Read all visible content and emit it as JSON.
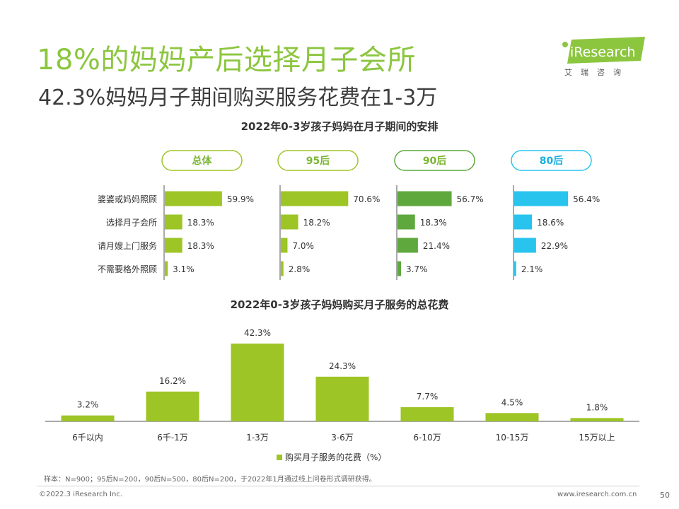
{
  "slide": {
    "title": "18%的妈妈产后选择月子会所",
    "subtitle": "42.3%妈妈月子期间购买服务花费在1-3万",
    "logo_text": "iResearch",
    "logo_cn": "艾瑞咨询",
    "note": "样本：N=900；95后N=200，90后N=500，80后N=200，于2022年1月通过线上问卷形式调研获得。",
    "copyright": "©2022.3 iResearch Inc.",
    "website": "www.iresearch.com.cn",
    "page_number": "50"
  },
  "colors": {
    "title_green": "#8cc63f",
    "bar_light_green": "#9dc526",
    "bar_dark_green": "#5ea83e",
    "bar_cyan": "#28c4ee",
    "pill_text_green": "#7ab532",
    "pill_text_cyan": "#1ab0e0"
  },
  "chart_data": [
    {
      "type": "bar",
      "orientation": "horizontal",
      "title": "2022年0-3岁孩子妈妈在月子期间的安排",
      "categories": [
        "婆婆或妈妈照顾",
        "选择月子会所",
        "请月嫂上门服务",
        "不需要格外照顾"
      ],
      "series": [
        {
          "name": "总体",
          "values": [
            59.9,
            18.3,
            18.3,
            3.1
          ],
          "color": "#9dc526"
        },
        {
          "name": "95后",
          "values": [
            70.6,
            18.2,
            7.0,
            2.8
          ],
          "color": "#9dc526"
        },
        {
          "name": "90后",
          "values": [
            56.7,
            18.3,
            21.4,
            3.7
          ],
          "color": "#5ea83e"
        },
        {
          "name": "80后",
          "values": [
            56.4,
            18.6,
            22.9,
            2.1
          ],
          "color": "#28c4ee"
        }
      ],
      "labels": [
        [
          "59.9%",
          "18.3%",
          "18.3%",
          "3.1%"
        ],
        [
          "70.6%",
          "18.2%",
          "7.0%",
          "2.8%"
        ],
        [
          "56.7%",
          "18.3%",
          "21.4%",
          "3.7%"
        ],
        [
          "56.4%",
          "18.6%",
          "22.9%",
          "2.1%"
        ]
      ],
      "unit": "%"
    },
    {
      "type": "bar",
      "title": "2022年0-3岁孩子妈妈购买月子服务的总花费",
      "categories": [
        "6千以内",
        "6千-1万",
        "1-3万",
        "3-6万",
        "6-10万",
        "10-15万",
        "15万以上"
      ],
      "series": [
        {
          "name": "购买月子服务的花费（%）",
          "values": [
            3.2,
            16.2,
            42.3,
            24.3,
            7.7,
            4.5,
            1.8
          ],
          "color": "#9dc526"
        }
      ],
      "labels": [
        "3.2%",
        "16.2%",
        "42.3%",
        "24.3%",
        "7.7%",
        "4.5%",
        "1.8%"
      ],
      "legend": "bottom-center",
      "unit": "%"
    }
  ]
}
